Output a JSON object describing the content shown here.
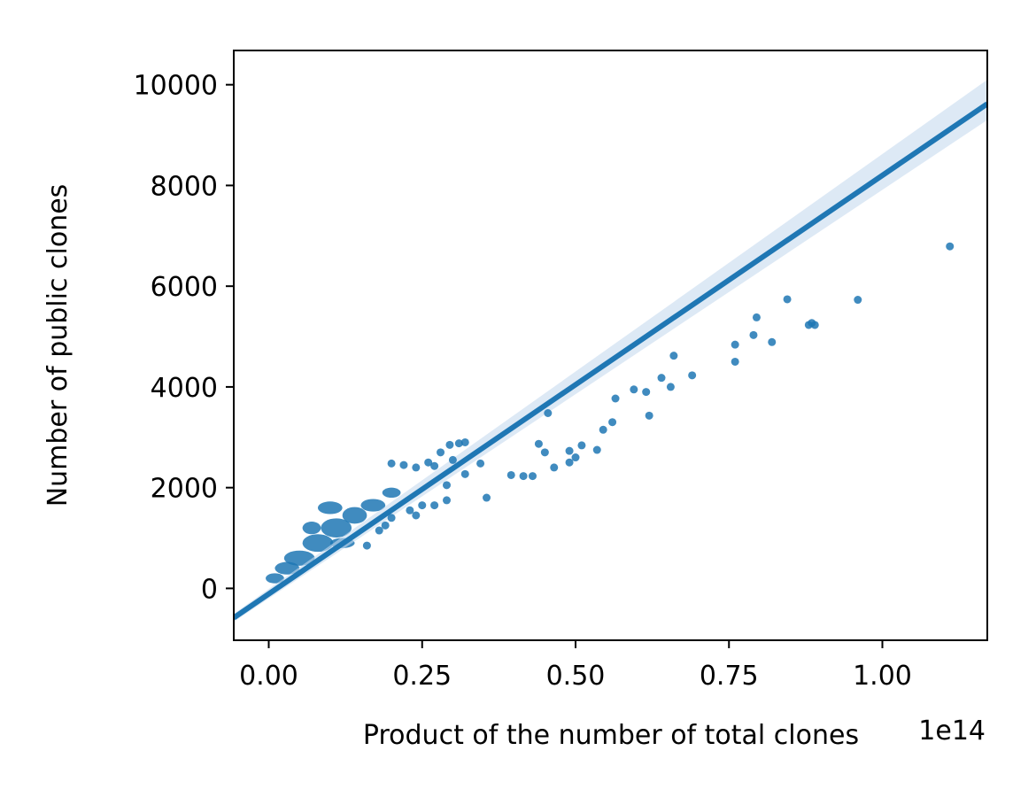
{
  "chart_data": {
    "type": "scatter",
    "title": "",
    "xlabel": "Product of the number of total clones",
    "ylabel": "Number of public clones",
    "x_offset_label": "1e14",
    "x_scale_exponent": 14,
    "xlim": [
      -0.057,
      1.171
    ],
    "ylim": [
      -1030,
      10680
    ],
    "x_ticks": [
      0.0,
      0.25,
      0.5,
      0.75,
      1.0
    ],
    "x_tick_labels": [
      "0.00",
      "0.25",
      "0.50",
      "0.75",
      "1.00"
    ],
    "y_ticks": [
      0,
      2000,
      4000,
      6000,
      8000,
      10000
    ],
    "y_tick_labels": [
      "0",
      "2000",
      "4000",
      "6000",
      "8000",
      "10000"
    ],
    "grid": false,
    "legend": "none",
    "colors": {
      "points": "#1f77b4",
      "line": "#1f77b4",
      "band": "#c6dbef"
    },
    "regression": {
      "intercept": -110,
      "slope": 8310,
      "ci_band_at_xlim_max": [
        9300,
        10100
      ]
    },
    "dense_cluster": [
      {
        "x": 0.01,
        "y": 200,
        "w": 0.03,
        "h": 200
      },
      {
        "x": 0.03,
        "y": 400,
        "w": 0.04,
        "h": 250
      },
      {
        "x": 0.05,
        "y": 600,
        "w": 0.05,
        "h": 300
      },
      {
        "x": 0.08,
        "y": 900,
        "w": 0.05,
        "h": 350
      },
      {
        "x": 0.11,
        "y": 1200,
        "w": 0.05,
        "h": 380
      },
      {
        "x": 0.14,
        "y": 1450,
        "w": 0.04,
        "h": 330
      },
      {
        "x": 0.17,
        "y": 1650,
        "w": 0.04,
        "h": 250
      },
      {
        "x": 0.2,
        "y": 1900,
        "w": 0.03,
        "h": 200
      },
      {
        "x": 0.1,
        "y": 1600,
        "w": 0.04,
        "h": 250
      },
      {
        "x": 0.07,
        "y": 1200,
        "w": 0.03,
        "h": 250
      },
      {
        "x": 0.12,
        "y": 900,
        "w": 0.04,
        "h": 200
      }
    ],
    "points": [
      {
        "x": 0.2,
        "y": 2480
      },
      {
        "x": 0.22,
        "y": 2450
      },
      {
        "x": 0.24,
        "y": 2400
      },
      {
        "x": 0.26,
        "y": 2500
      },
      {
        "x": 0.27,
        "y": 2430
      },
      {
        "x": 0.28,
        "y": 2700
      },
      {
        "x": 0.295,
        "y": 2850
      },
      {
        "x": 0.31,
        "y": 2880
      },
      {
        "x": 0.32,
        "y": 2900
      },
      {
        "x": 0.3,
        "y": 2550
      },
      {
        "x": 0.345,
        "y": 2480
      },
      {
        "x": 0.32,
        "y": 2270
      },
      {
        "x": 0.29,
        "y": 2050
      },
      {
        "x": 0.25,
        "y": 1650
      },
      {
        "x": 0.27,
        "y": 1650
      },
      {
        "x": 0.29,
        "y": 1750
      },
      {
        "x": 0.23,
        "y": 1550
      },
      {
        "x": 0.24,
        "y": 1450
      },
      {
        "x": 0.2,
        "y": 1400
      },
      {
        "x": 0.19,
        "y": 1250
      },
      {
        "x": 0.18,
        "y": 1150
      },
      {
        "x": 0.16,
        "y": 850
      },
      {
        "x": 0.355,
        "y": 1800
      },
      {
        "x": 0.395,
        "y": 2250
      },
      {
        "x": 0.415,
        "y": 2230
      },
      {
        "x": 0.43,
        "y": 2230
      },
      {
        "x": 0.44,
        "y": 2870
      },
      {
        "x": 0.45,
        "y": 2700
      },
      {
        "x": 0.455,
        "y": 3480
      },
      {
        "x": 0.465,
        "y": 2400
      },
      {
        "x": 0.49,
        "y": 2500
      },
      {
        "x": 0.49,
        "y": 2730
      },
      {
        "x": 0.5,
        "y": 2600
      },
      {
        "x": 0.51,
        "y": 2840
      },
      {
        "x": 0.535,
        "y": 2750
      },
      {
        "x": 0.545,
        "y": 3150
      },
      {
        "x": 0.56,
        "y": 3300
      },
      {
        "x": 0.565,
        "y": 3770
      },
      {
        "x": 0.595,
        "y": 3950
      },
      {
        "x": 0.615,
        "y": 3900
      },
      {
        "x": 0.62,
        "y": 3430
      },
      {
        "x": 0.64,
        "y": 4180
      },
      {
        "x": 0.655,
        "y": 4000
      },
      {
        "x": 0.66,
        "y": 4620
      },
      {
        "x": 0.69,
        "y": 4230
      },
      {
        "x": 0.76,
        "y": 4840
      },
      {
        "x": 0.76,
        "y": 4500
      },
      {
        "x": 0.79,
        "y": 5030
      },
      {
        "x": 0.795,
        "y": 5380
      },
      {
        "x": 0.82,
        "y": 4890
      },
      {
        "x": 0.845,
        "y": 5740
      },
      {
        "x": 0.88,
        "y": 5230
      },
      {
        "x": 0.885,
        "y": 5270
      },
      {
        "x": 0.89,
        "y": 5230
      },
      {
        "x": 0.96,
        "y": 5730
      },
      {
        "x": 1.11,
        "y": 6790
      }
    ]
  }
}
